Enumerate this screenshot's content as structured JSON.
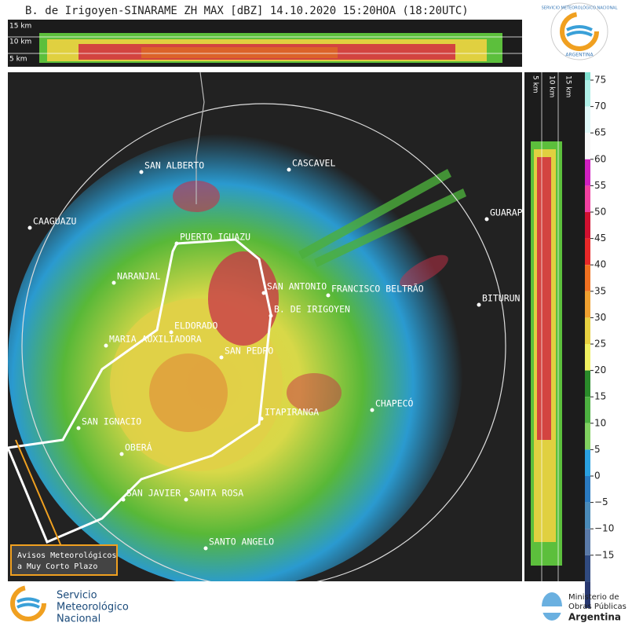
{
  "header": {
    "title": "B. de Irigoyen-SINARAME ZH MAX [dBZ] 14.10.2020 15:20HOA (18:20UTC)",
    "logo_ring": "SERVICIO METEOROLÓGICO NACIONAL",
    "logo_country": "ARGENTINA"
  },
  "top_section": {
    "heights": [
      "15 km",
      "10 km",
      "5 km"
    ]
  },
  "side_section": {
    "heights": [
      "5 km",
      "10 km",
      "15 km"
    ]
  },
  "map": {
    "cities": [
      "SAN ALBERTO",
      "CASCAVEL",
      "CAAGUAZU",
      "GUARAP",
      "PUERTO IGUAZU",
      "NARANJAL",
      "SAN ANTONIO",
      "FRANCISCO BELTRÃO",
      "B. DE IRIGOYEN",
      "BITURUN",
      "ELDORADO",
      "MARIA AUXILIADORA",
      "SAN PEDRO",
      "CHAPECÓ",
      "ITAPIRANGA",
      "SAN IGNACIO",
      "OBERÁ",
      "SAN JAVIER",
      "SANTA ROSA",
      "SANTO ANGELO"
    ],
    "notice": [
      "Avisos Meteorológicos",
      "a Muy Corto Plazo"
    ]
  },
  "colorbar": {
    "ticks": [
      "75",
      "70",
      "65",
      "60",
      "55",
      "50",
      "45",
      "40",
      "35",
      "30",
      "25",
      "20",
      "15",
      "10",
      "5",
      "0",
      "−5",
      "−10",
      "−15"
    ]
  },
  "footer": {
    "smn": [
      "Servicio",
      "Meteorológico",
      "Nacional"
    ],
    "ministry": [
      "Ministerio de",
      "Obras Públicas",
      "Argentina"
    ]
  }
}
